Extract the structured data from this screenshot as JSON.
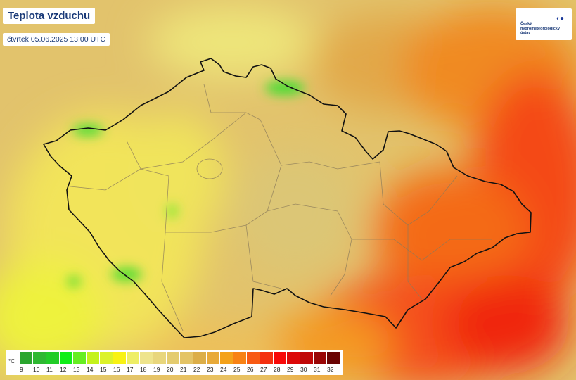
{
  "title": "Teplota vzduchu",
  "datetime": "čtvrtek 05.06.2025 13:00 UTC",
  "logo": {
    "text": "Český hydrometeorologický ústav",
    "icon": "chmi-logo"
  },
  "legend": {
    "unit": "°C",
    "items": [
      {
        "label": "9",
        "color": "#2aa52e"
      },
      {
        "label": "10",
        "color": "#2eb832"
      },
      {
        "label": "11",
        "color": "#22cc28"
      },
      {
        "label": "12",
        "color": "#10ee18"
      },
      {
        "label": "13",
        "color": "#66ee22"
      },
      {
        "label": "14",
        "color": "#c4f21c"
      },
      {
        "label": "15",
        "color": "#dcf22a"
      },
      {
        "label": "16",
        "color": "#f8f214"
      },
      {
        "label": "17",
        "color": "#eeee66"
      },
      {
        "label": "18",
        "color": "#eee48c"
      },
      {
        "label": "19",
        "color": "#e8d67c"
      },
      {
        "label": "20",
        "color": "#e4cc70"
      },
      {
        "label": "21",
        "color": "#e4c466"
      },
      {
        "label": "22",
        "color": "#dcae48"
      },
      {
        "label": "23",
        "color": "#e8aa3a"
      },
      {
        "label": "24",
        "color": "#f4a21a"
      },
      {
        "label": "25",
        "color": "#f88214"
      },
      {
        "label": "26",
        "color": "#f85a14"
      },
      {
        "label": "27",
        "color": "#f43010"
      },
      {
        "label": "28",
        "color": "#f80808"
      },
      {
        "label": "29",
        "color": "#dc0808"
      },
      {
        "label": "30",
        "color": "#c00808"
      },
      {
        "label": "31",
        "color": "#9a0606"
      },
      {
        "label": "32",
        "color": "#6a0404"
      }
    ]
  }
}
